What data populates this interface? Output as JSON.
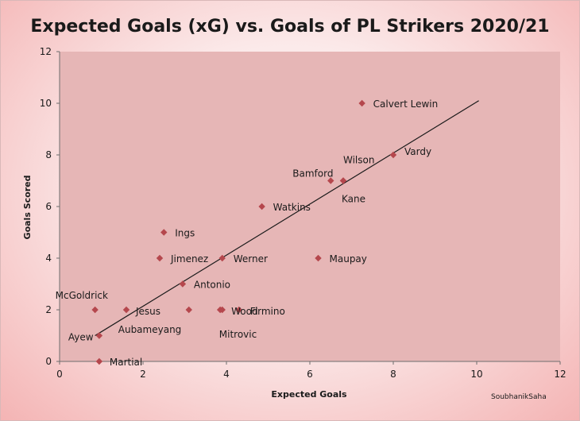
{
  "chart_data": {
    "type": "scatter",
    "title": "Expected Goals (xG) vs. Goals of PL Strikers 2020/21",
    "xlabel": "Expected Goals",
    "ylabel": "Goals Scored",
    "xlim": [
      0,
      12
    ],
    "ylim": [
      0,
      12
    ],
    "xticks": [
      0,
      2,
      4,
      6,
      8,
      10,
      12
    ],
    "yticks": [
      0,
      2,
      4,
      6,
      8,
      10,
      12
    ],
    "marker": "diamond",
    "marker_color": "#b5474d",
    "plot_background": "#e6b6b6",
    "credit": "SoubhanikSaha",
    "trendline": {
      "x": [
        0.85,
        10.05
      ],
      "y": [
        1.0,
        10.1
      ],
      "color": "#1a1a1a"
    },
    "points": [
      {
        "name": "Calvert Lewin",
        "x": 7.25,
        "y": 10
      },
      {
        "name": "Vardy",
        "x": 8.0,
        "y": 8
      },
      {
        "name": "Wilson",
        "x": 6.8,
        "y": 7
      },
      {
        "name": "Bamford",
        "x": 6.5,
        "y": 7
      },
      {
        "name": "Kane",
        "x": 6.8,
        "y": 7
      },
      {
        "name": "Watkins",
        "x": 4.85,
        "y": 6
      },
      {
        "name": "Ings",
        "x": 2.5,
        "y": 5
      },
      {
        "name": "Jimenez",
        "x": 2.4,
        "y": 4
      },
      {
        "name": "Werner",
        "x": 3.9,
        "y": 4
      },
      {
        "name": "Maupay",
        "x": 6.2,
        "y": 4
      },
      {
        "name": "Antonio",
        "x": 2.95,
        "y": 3
      },
      {
        "name": "McGoldrick",
        "x": 0.85,
        "y": 2
      },
      {
        "name": "Jesus",
        "x": 1.6,
        "y": 2
      },
      {
        "name": "Aubameyang",
        "x": 3.1,
        "y": 2
      },
      {
        "name": "Wood",
        "x": 3.85,
        "y": 2
      },
      {
        "name": "Mitrovic",
        "x": 3.9,
        "y": 2
      },
      {
        "name": "Firmino",
        "x": 4.3,
        "y": 2
      },
      {
        "name": "Ayew",
        "x": 0.95,
        "y": 1
      },
      {
        "name": "Martial",
        "x": 0.95,
        "y": 0
      }
    ]
  }
}
